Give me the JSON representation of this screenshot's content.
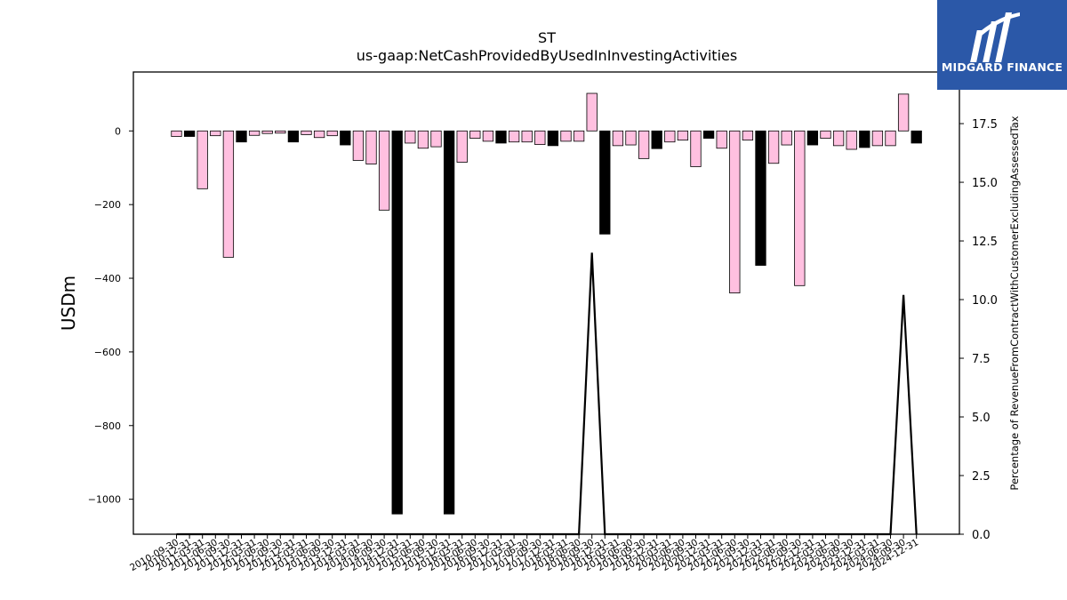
{
  "logo": {
    "text": "MIDGARD FINANCE",
    "icon": "midgard-m-logo-icon",
    "background": "#2b58a8"
  },
  "chart_data": {
    "type": "bar",
    "title": "ST",
    "subtitle": "us-gaap:NetCashProvidedByUsedInInvestingActivities",
    "ylabel": "USDm",
    "y2label": "Percentage of RevenueFromContractWithCustomerExcludingAssessedTax",
    "ylim": [
      -1095,
      160
    ],
    "y2lim": [
      0,
      19.7
    ],
    "yticks": [
      0,
      -200,
      -400,
      -600,
      -800,
      -1000
    ],
    "yticklabels": [
      "0",
      "−200",
      "−400",
      "−600",
      "−800",
      "−1000"
    ],
    "y2ticks": [
      0,
      2.5,
      5,
      7.5,
      10,
      12.5,
      15,
      17.5
    ],
    "y2ticklabels": [
      "0.0",
      "2.5",
      "5.0",
      "7.5",
      "10.0",
      "12.5",
      "15.0",
      "17.5"
    ],
    "categories": [
      "2010-09-30",
      "2010-12-31",
      "2011-03-31",
      "2011-06-30",
      "2011-09-30",
      "2011-12-31",
      "2012-03-31",
      "2012-06-30",
      "2012-09-30",
      "2012-12-31",
      "2013-03-31",
      "2013-06-30",
      "2013-09-30",
      "2013-12-31",
      "2014-03-31",
      "2014-06-30",
      "2014-09-30",
      "2014-12-31",
      "2015-03-31",
      "2015-06-30",
      "2015-09-30",
      "2015-12-31",
      "2016-03-31",
      "2016-06-30",
      "2016-09-30",
      "2016-12-31",
      "2017-03-31",
      "2017-06-30",
      "2017-09-30",
      "2017-12-31",
      "2018-03-31",
      "2018-06-30",
      "2018-09-30",
      "2018-12-31",
      "2019-03-31",
      "2019-06-30",
      "2019-09-30",
      "2019-12-31",
      "2020-03-31",
      "2020-06-30",
      "2020-09-30",
      "2020-12-31",
      "2021-03-31",
      "2021-06-30",
      "2021-09-30",
      "2021-12-31",
      "2022-03-31",
      "2022-06-30",
      "2022-09-30",
      "2022-12-31",
      "2023-03-31",
      "2023-06-30",
      "2023-09-30",
      "2023-12-31",
      "2024-03-31",
      "2024-06-30",
      "2024-09-30",
      "2024-12-31"
    ],
    "values": [
      -15,
      -15,
      -157,
      -13,
      -343,
      -30,
      -12,
      -7,
      -6,
      -30,
      -10,
      -18,
      -13,
      -38,
      -80,
      -90,
      -215,
      -1040,
      -33,
      -47,
      -43,
      -1040,
      -85,
      -20,
      -28,
      -33,
      -30,
      -30,
      -37,
      -40,
      -28,
      -28,
      102,
      -280,
      -40,
      -38,
      -75,
      -48,
      -30,
      -25,
      -97,
      -20,
      -47,
      -440,
      -25,
      -365,
      -88,
      -38,
      -420,
      -38,
      -20,
      -40,
      -50,
      -45,
      -40,
      -40,
      100,
      -33
    ],
    "colors": [
      "pink",
      "black",
      "pink",
      "pink",
      "pink",
      "black",
      "pink",
      "pink",
      "pink",
      "black",
      "pink",
      "pink",
      "pink",
      "black",
      "pink",
      "pink",
      "pink",
      "black",
      "pink",
      "pink",
      "pink",
      "black",
      "pink",
      "pink",
      "pink",
      "black",
      "pink",
      "pink",
      "pink",
      "black",
      "pink",
      "pink",
      "pink",
      "black",
      "pink",
      "pink",
      "pink",
      "black",
      "pink",
      "pink",
      "pink",
      "black",
      "pink",
      "pink",
      "pink",
      "black",
      "pink",
      "pink",
      "pink",
      "black",
      "pink",
      "pink",
      "pink",
      "black",
      "pink",
      "pink",
      "pink",
      "black"
    ],
    "palette": {
      "pink": "#ffc0e0",
      "black": "#000000",
      "edge": "#000000"
    },
    "secondary_line": {
      "color": "#000000",
      "values": [
        0,
        0,
        0,
        0,
        0,
        0,
        0,
        0,
        0,
        0,
        0,
        0,
        0,
        0,
        0,
        0,
        0,
        0,
        0,
        0,
        0,
        0,
        0,
        0,
        0,
        0,
        0,
        0,
        0,
        0,
        0,
        0,
        12,
        0,
        0,
        0,
        0,
        0,
        0,
        0,
        0,
        0,
        0,
        0,
        0,
        0,
        0,
        0,
        0,
        0,
        0,
        0,
        0,
        0,
        0,
        0,
        10.2,
        0
      ]
    },
    "grid": false
  }
}
